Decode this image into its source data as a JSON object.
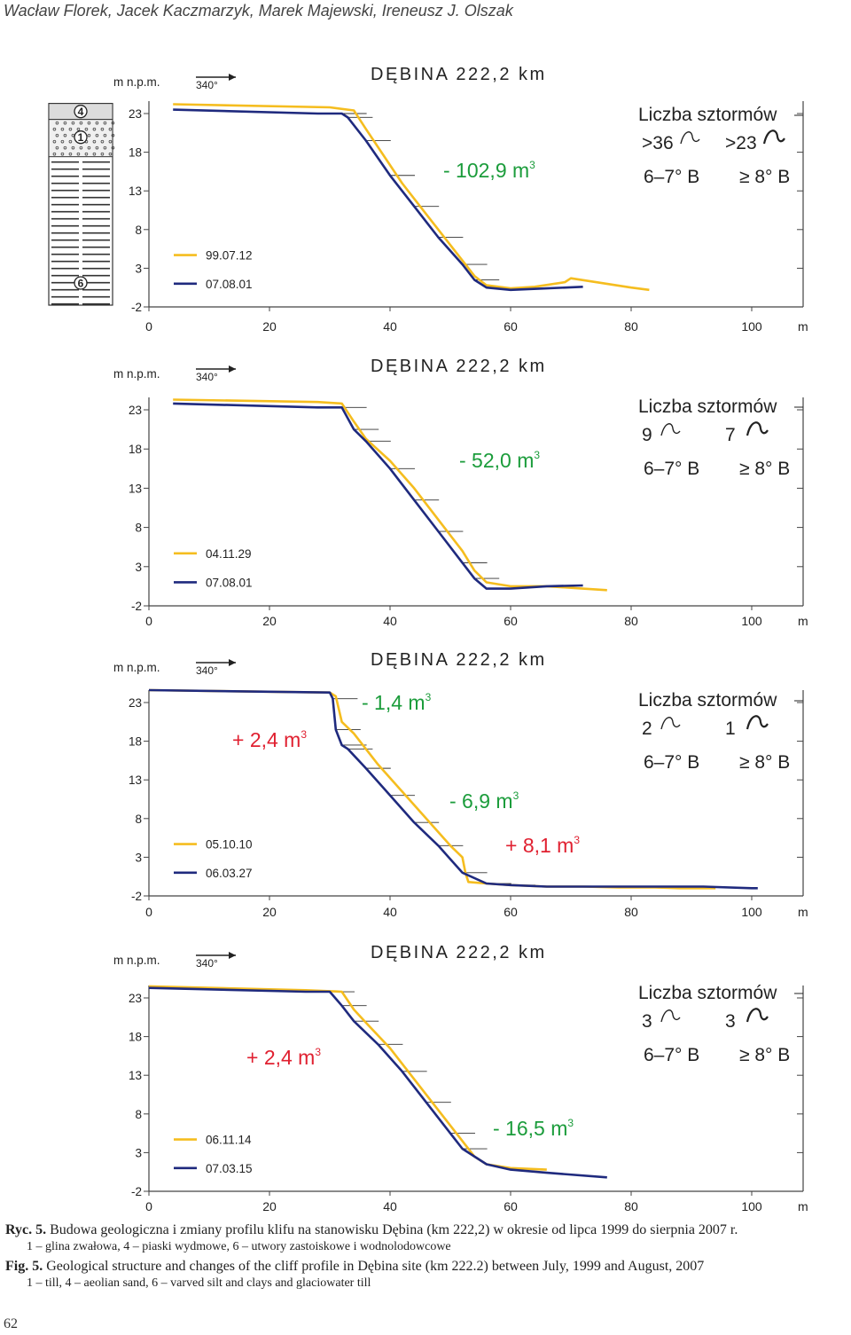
{
  "header": {
    "authors": "Wacław Florek, Jacek Kaczmarzyk, Marek Majewski, Ireneusz J. Olszak"
  },
  "colors": {
    "yellow": "#f5bd1f",
    "blue": "#1f2a7e",
    "red": "#e02030",
    "green": "#1b9c3b",
    "axis": "#444444"
  },
  "chart_data": [
    {
      "type": "line",
      "title": "DĘBINA 222,2 km",
      "direction": "340°",
      "ylabel": "m n.p.m.",
      "xlabel": "m",
      "xlim": [
        0,
        100
      ],
      "ylim": [
        -2,
        23
      ],
      "xticks": [
        0,
        20,
        40,
        60,
        80,
        100
      ],
      "yticks": [
        23,
        18,
        13,
        8,
        3,
        -2
      ],
      "series": [
        {
          "name": "99.07.12",
          "color": "yellow",
          "x": [
            4,
            30,
            34,
            36,
            42,
            46,
            50,
            54,
            56,
            60,
            64,
            69,
            70,
            80,
            83
          ],
          "y": [
            24.2,
            23.8,
            23.4,
            21,
            14,
            10,
            6,
            2,
            0.8,
            0.4,
            0.6,
            1.2,
            1.7,
            0.5,
            0.2
          ]
        },
        {
          "name": "07.08.01",
          "color": "blue",
          "x": [
            4,
            28,
            32,
            33,
            36,
            40,
            44,
            48,
            52,
            54,
            56,
            60,
            66,
            72
          ],
          "y": [
            23.5,
            23,
            23,
            22.5,
            19.5,
            15,
            11,
            7,
            3.5,
            1.5,
            0.5,
            0.2,
            0.4,
            0.6
          ]
        }
      ],
      "change_labels": [
        {
          "text": "- 102,9 m",
          "sup": "3",
          "color": "green"
        }
      ],
      "storms": {
        "title": "Liczba sztormów",
        "count_low": ">36",
        "count_high": ">23",
        "wind_low": "6–7° B",
        "wind_high": "≥ 8° B"
      },
      "column_labels": [
        "4",
        "1",
        "6"
      ]
    },
    {
      "type": "line",
      "title": "DĘBINA 222,2 km",
      "direction": "340°",
      "ylabel": "m n.p.m.",
      "xlabel": "m",
      "xlim": [
        0,
        100
      ],
      "ylim": [
        -2,
        23
      ],
      "xticks": [
        0,
        20,
        40,
        60,
        80,
        100
      ],
      "yticks": [
        23,
        18,
        13,
        8,
        3,
        -2
      ],
      "series": [
        {
          "name": "04.11.29",
          "color": "yellow",
          "x": [
            4,
            28,
            32,
            34,
            36,
            40,
            44,
            48,
            52,
            54,
            56,
            60,
            66,
            72,
            76
          ],
          "y": [
            24.3,
            24,
            23.8,
            21.5,
            19.3,
            16.5,
            13,
            9,
            5,
            2.5,
            1,
            0.5,
            0.5,
            0.2,
            0
          ]
        },
        {
          "name": "07.08.01",
          "color": "blue",
          "x": [
            4,
            28,
            32,
            34,
            36,
            40,
            44,
            48,
            52,
            54,
            56,
            60,
            66,
            72
          ],
          "y": [
            23.8,
            23.3,
            23.3,
            20.5,
            19,
            15.5,
            11.5,
            7.5,
            3.5,
            1.5,
            0.2,
            0.2,
            0.5,
            0.6
          ]
        }
      ],
      "change_labels": [
        {
          "text": "- 52,0 m",
          "sup": "3",
          "color": "green"
        }
      ],
      "storms": {
        "title": "Liczba sztormów",
        "count_low": "9",
        "count_high": "7",
        "wind_low": "6–7° B",
        "wind_high": "≥ 8° B"
      }
    },
    {
      "type": "line",
      "title": "DĘBINA 222,2 km",
      "direction": "340°",
      "ylabel": "m n.p.m.",
      "xlabel": "m",
      "xlim": [
        0,
        100
      ],
      "ylim": [
        -2,
        23
      ],
      "xticks": [
        0,
        20,
        40,
        60,
        80,
        100
      ],
      "yticks": [
        23,
        18,
        13,
        8,
        3,
        -2
      ],
      "series": [
        {
          "name": "05.10.10",
          "color": "yellow",
          "x": [
            0,
            30,
            31,
            32,
            34,
            38,
            42,
            46,
            50,
            52,
            52.5,
            53,
            56,
            60,
            66,
            72,
            78,
            84,
            88,
            94
          ],
          "y": [
            24.6,
            24.3,
            23.8,
            20.5,
            19,
            15,
            11.5,
            8,
            4.5,
            3,
            1,
            -0.2,
            -0.4,
            -0.6,
            -0.8,
            -0.8,
            -0.9,
            -0.9,
            -1,
            -1
          ]
        },
        {
          "name": "06.03.27",
          "color": "blue",
          "x": [
            0,
            30,
            30.5,
            31,
            32,
            33,
            36,
            40,
            44,
            48,
            52,
            56,
            60,
            66,
            72,
            78,
            84,
            92,
            100,
            101
          ],
          "y": [
            24.6,
            24.3,
            23.5,
            19.5,
            17.5,
            17,
            14.5,
            11,
            7.5,
            4.5,
            1,
            -0.4,
            -0.6,
            -0.8,
            -0.8,
            -0.8,
            -0.8,
            -0.8,
            -1,
            -1
          ]
        }
      ],
      "change_labels": [
        {
          "text": "+ 2,4 m",
          "sup": "3",
          "color": "red"
        },
        {
          "text": "- 1,4 m",
          "sup": "3",
          "color": "green"
        },
        {
          "text": "- 6,9 m",
          "sup": "3",
          "color": "green"
        },
        {
          "text": "+ 8,1 m",
          "sup": "3",
          "color": "red"
        }
      ],
      "storms": {
        "title": "Liczba sztormów",
        "count_low": "2",
        "count_high": "1",
        "wind_low": "6–7° B",
        "wind_high": "≥ 8° B"
      }
    },
    {
      "type": "line",
      "title": "DĘBINA 222,2 km",
      "direction": "340°",
      "ylabel": "m n.p.m.",
      "xlabel": "m",
      "xlim": [
        0,
        100
      ],
      "ylim": [
        -2,
        23
      ],
      "xticks": [
        0,
        20,
        40,
        60,
        80,
        100
      ],
      "yticks": [
        23,
        18,
        13,
        8,
        3,
        -2
      ],
      "series": [
        {
          "name": "06.11.14",
          "color": "yellow",
          "x": [
            0,
            26,
            32,
            34,
            36,
            40,
            44,
            48,
            52,
            54,
            56,
            60,
            66
          ],
          "y": [
            24.5,
            24,
            23.8,
            21.5,
            19.8,
            16.5,
            12.5,
            8.5,
            4.5,
            2.5,
            1.5,
            1,
            0.8
          ]
        },
        {
          "name": "07.03.15",
          "color": "blue",
          "x": [
            0,
            26,
            30,
            32,
            34,
            38,
            42,
            46,
            50,
            52,
            56,
            60,
            66,
            76
          ],
          "y": [
            24.3,
            23.8,
            23.8,
            22,
            20,
            17,
            13.5,
            9.5,
            5.5,
            3.5,
            1.5,
            0.8,
            0.4,
            -0.2
          ]
        }
      ],
      "change_labels": [
        {
          "text": "+ 2,4 m",
          "sup": "3",
          "color": "red"
        },
        {
          "text": "- 16,5 m",
          "sup": "3",
          "color": "green"
        }
      ],
      "storms": {
        "title": "Liczba sztormów",
        "count_low": "3",
        "count_high": "3",
        "wind_low": "6–7° B",
        "wind_high": "≥ 8° B"
      }
    }
  ],
  "caption": {
    "pl_label": "Ryc. 5.",
    "pl_text": " Budowa geologiczna i zmiany profilu klifu na stanowisku Dębina (km 222,2) w okresie od lipca 1999 do sierpnia 2007 r.",
    "pl_sub": "1 – glina zwałowa, 4 – piaski wydmowe, 6 – utwory zastoiskowe i wodnolodowcowe",
    "en_label": "Fig. 5.",
    "en_text": " Geological structure and changes of the cliff profile in Dębina site (km 222.2) between July, 1999 and August, 2007",
    "en_sub": "1 – till, 4 – aeolian sand, 6 – varved silt and clays and glaciowater till"
  },
  "page_number": "62"
}
